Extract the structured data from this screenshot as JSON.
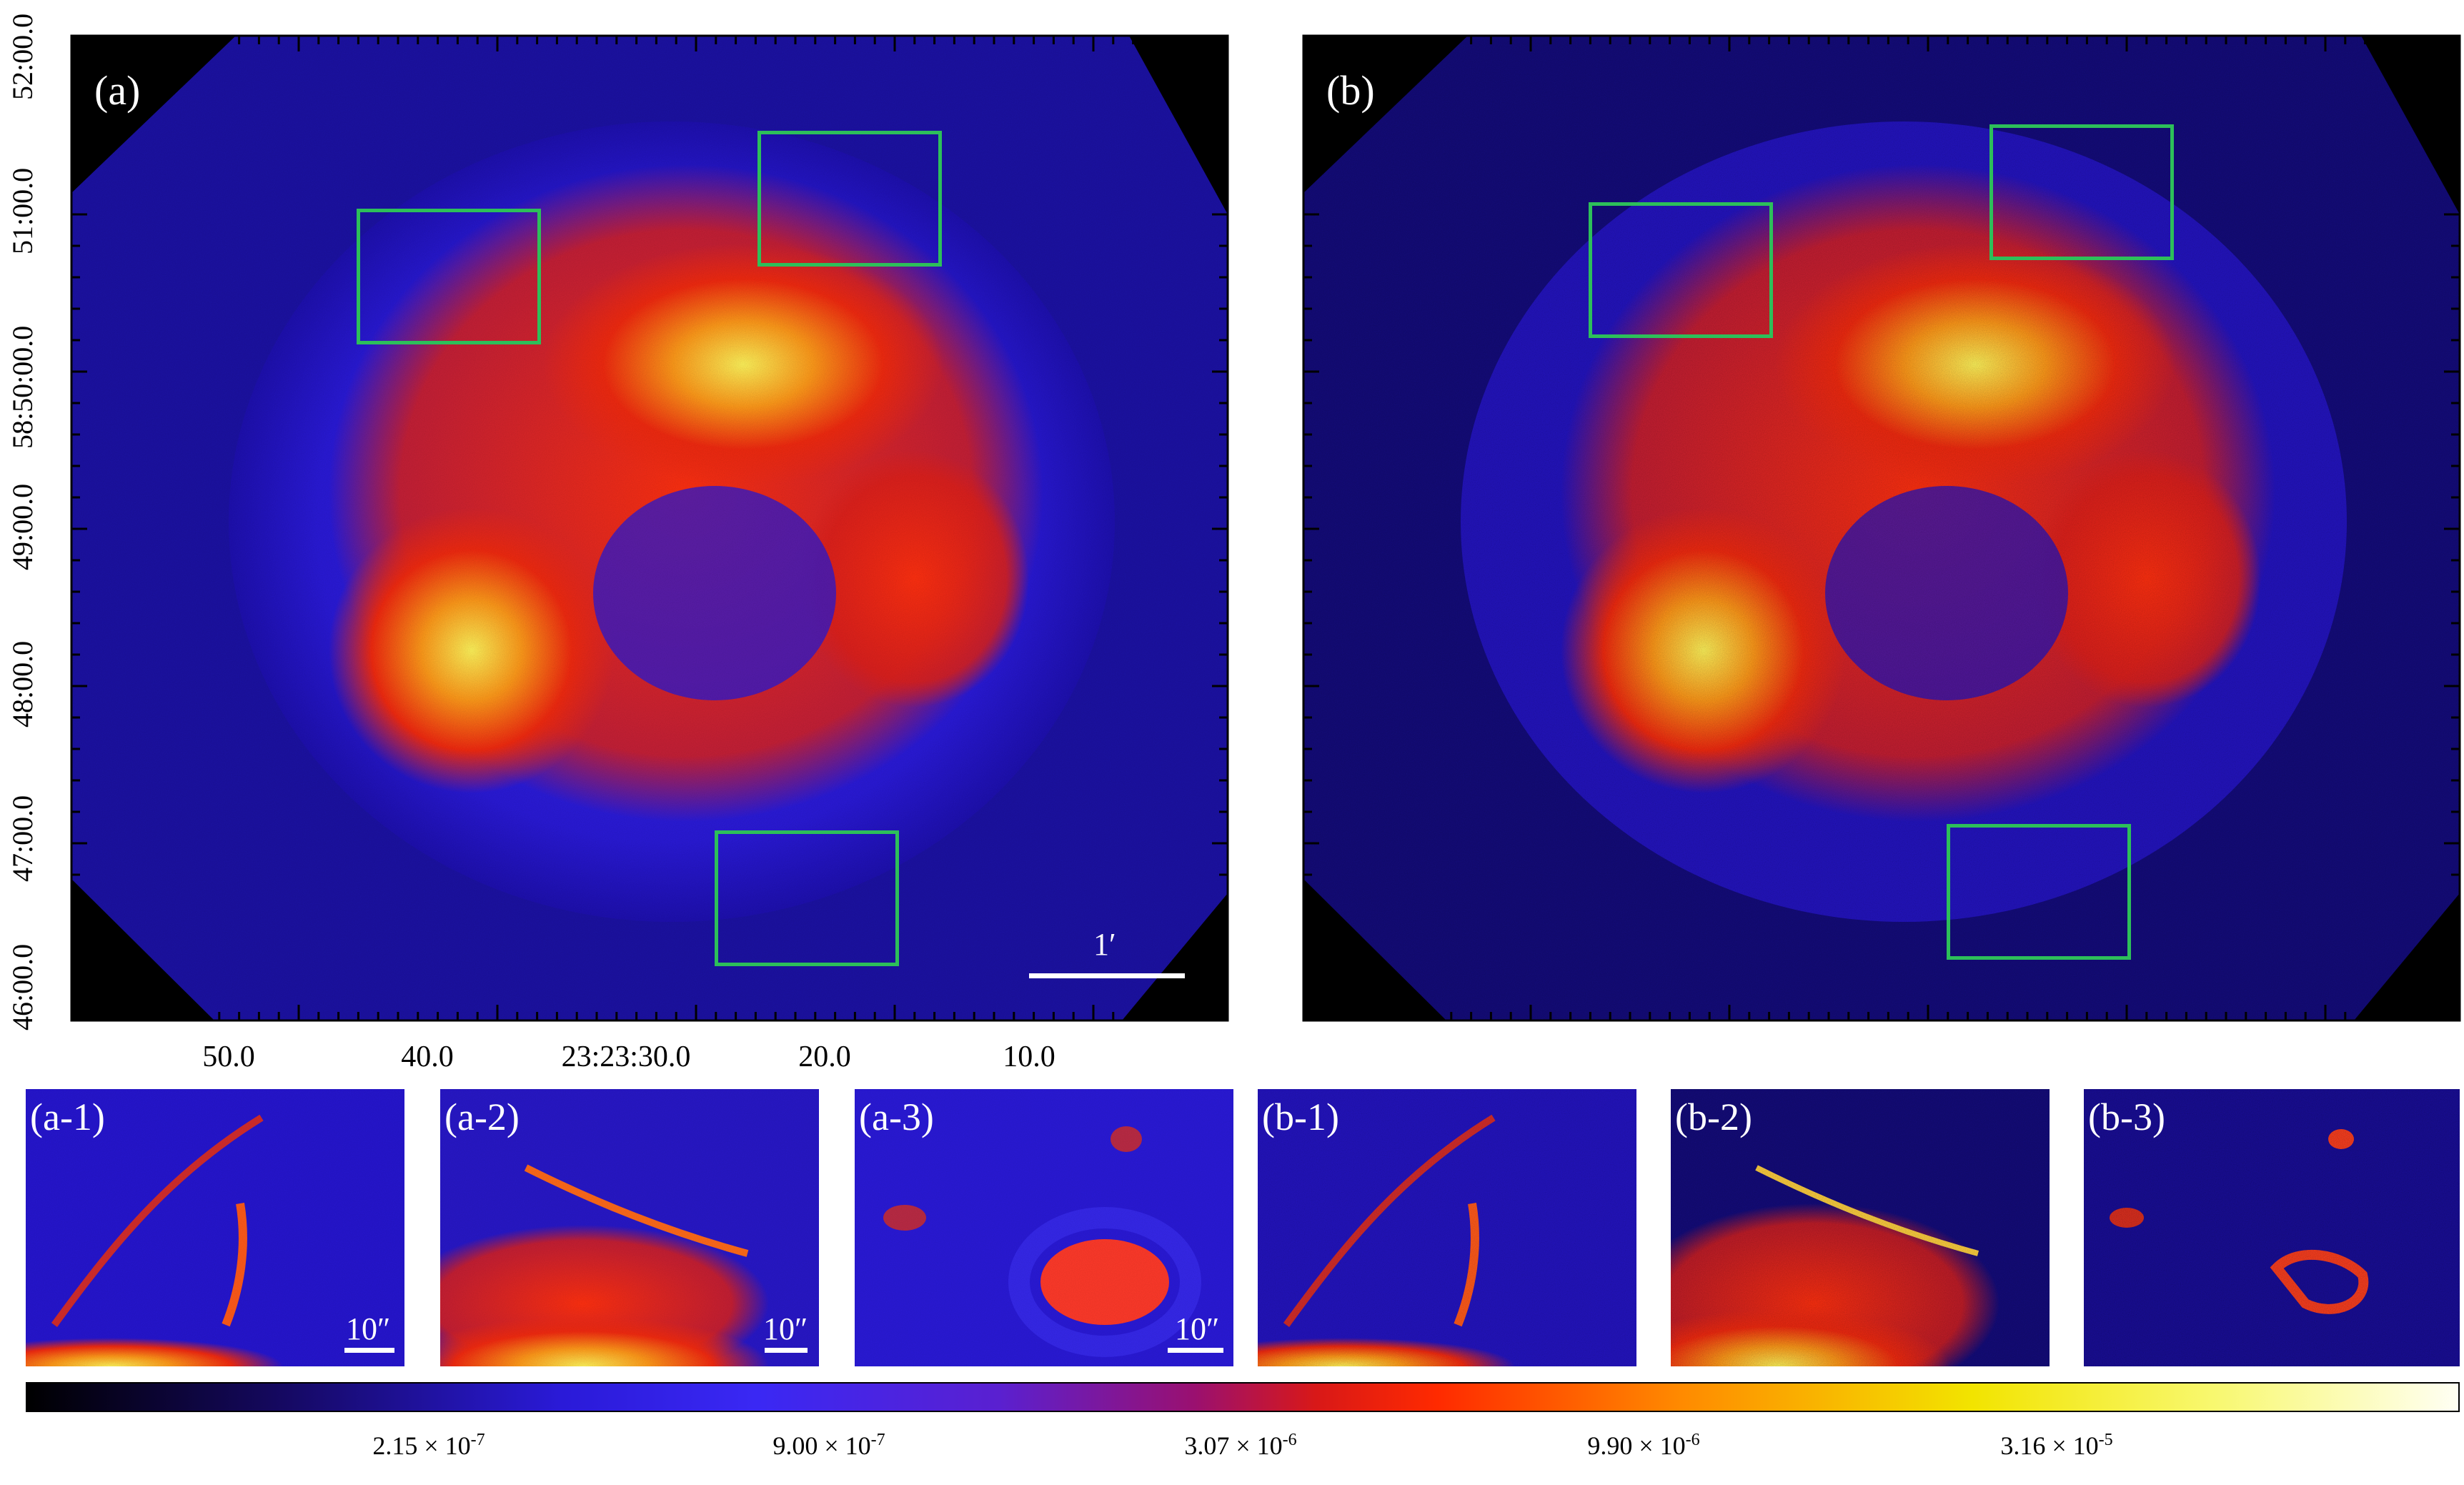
{
  "figure": {
    "panels": {
      "a": {
        "label": "(a)",
        "scale_label": "1′"
      },
      "b": {
        "label": "(b)"
      }
    },
    "insets": [
      {
        "label": "(a-1)",
        "scale_label": "10″"
      },
      {
        "label": "(a-2)",
        "scale_label": "10″"
      },
      {
        "label": "(a-3)",
        "scale_label": "10″"
      },
      {
        "label": "(b-1)"
      },
      {
        "label": "(b-2)"
      },
      {
        "label": "(b-3)"
      }
    ],
    "y_axis_ticks": [
      "52:00.0",
      "51:00.0",
      "58:50:00.0",
      "49:00.0",
      "48:00.0",
      "47:00.0",
      "46:00.0"
    ],
    "x_axis_ticks": [
      "50.0",
      "40.0",
      "23:23:30.0",
      "20.0",
      "10.0"
    ],
    "colorbar": {
      "labels": [
        "2.15 × 10",
        "9.00 × 10",
        "3.07 × 10",
        "9.90 × 10",
        "3.16 × 10"
      ],
      "exponents": [
        "-7",
        "-7",
        "-6",
        "-6",
        "-5"
      ],
      "colormap": [
        "#000000",
        "#1a0070",
        "#2d1ee6",
        "#5a1ee0",
        "#a0106a",
        "#d81818",
        "#ff3a00",
        "#ff9a00",
        "#f4f000",
        "#fffff0"
      ]
    },
    "colors": {
      "zoom_box": "#2dbf5a",
      "background": "#000000"
    }
  }
}
